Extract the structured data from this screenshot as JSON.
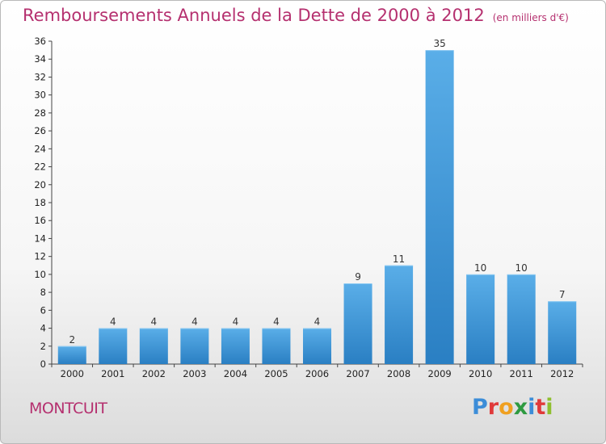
{
  "title": "Remboursements Annuels de la Dette de 2000 à 2012",
  "subtitle": "(en milliers d'€)",
  "city": "MONTCUIT",
  "logo": {
    "letters": [
      "P",
      "r",
      "o",
      "x",
      "i",
      "t",
      "i"
    ],
    "colors": [
      "#3c8dd8",
      "#e03a3a",
      "#f0a020",
      "#2e9a40",
      "#3c8dd8",
      "#e03a3a",
      "#8fbf2f"
    ]
  },
  "colors": {
    "bar_light": "#5aaee8",
    "bar_dark": "#2a7fc3",
    "title": "#b5306f"
  },
  "chart_data": {
    "type": "bar",
    "categories": [
      "2000",
      "2001",
      "2002",
      "2003",
      "2004",
      "2005",
      "2006",
      "2007",
      "2008",
      "2009",
      "2010",
      "2011",
      "2012"
    ],
    "values": [
      2,
      4,
      4,
      4,
      4,
      4,
      4,
      9,
      11,
      35,
      10,
      10,
      7
    ],
    "ylim": [
      0,
      36
    ],
    "yticks": [
      0,
      2,
      4,
      6,
      8,
      10,
      12,
      14,
      16,
      18,
      20,
      22,
      24,
      26,
      28,
      30,
      32,
      34,
      36
    ],
    "grid": false,
    "xlabel": "",
    "ylabel": ""
  }
}
